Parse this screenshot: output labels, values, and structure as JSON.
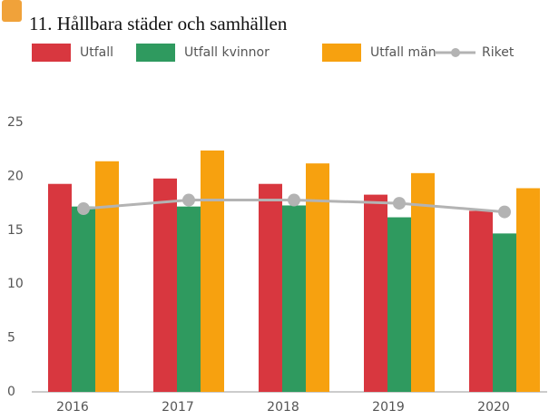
{
  "chart_data": {
    "type": "bar",
    "title": "11. Hållbara städer och samhällen",
    "categories": [
      "2016",
      "2017",
      "2018",
      "2019",
      "2020"
    ],
    "series": [
      {
        "name": "Utfall",
        "color": "#d8373f",
        "values": [
          19.3,
          19.8,
          19.3,
          18.3,
          16.8
        ]
      },
      {
        "name": "Utfall kvinnor",
        "color": "#2f9a5f",
        "values": [
          17.2,
          17.2,
          17.3,
          16.2,
          14.7
        ]
      },
      {
        "name": "Utfall män",
        "color": "#f7a10f",
        "values": [
          21.4,
          22.4,
          21.2,
          20.3,
          18.9
        ]
      },
      {
        "name": "Riket",
        "type": "line",
        "color": "#b3b3b3",
        "values": [
          17.0,
          17.8,
          17.8,
          17.5,
          16.7
        ]
      }
    ],
    "ylim": [
      0,
      25
    ],
    "yticks": [
      0,
      5,
      10,
      15,
      20,
      25
    ],
    "grid": false,
    "legend": "top"
  }
}
